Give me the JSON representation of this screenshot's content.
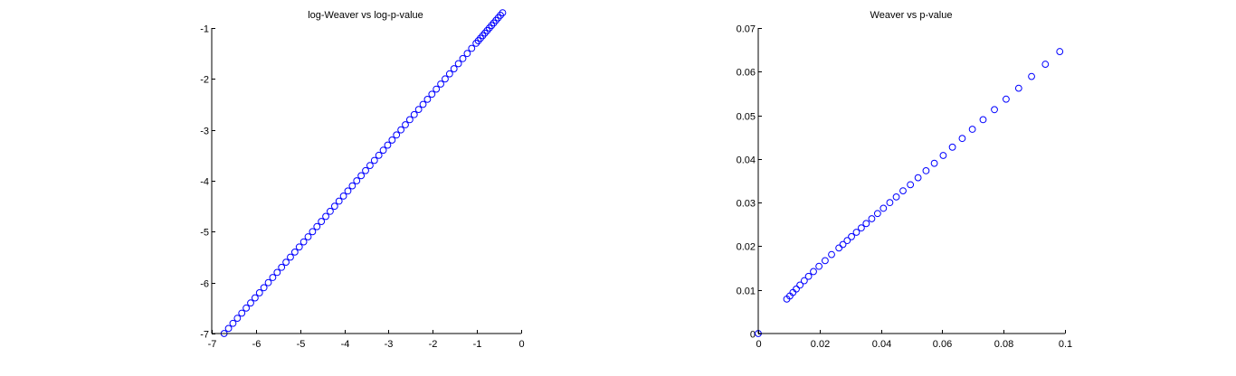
{
  "chart_data": [
    {
      "type": "scatter",
      "title": "log-Weaver vs log-p-value",
      "xlabel": "",
      "ylabel": "",
      "xlim": [
        -7,
        0
      ],
      "ylim": [
        -7,
        -1
      ],
      "xticks": [
        -7,
        -6,
        -5,
        -4,
        -3,
        -2,
        -1,
        0
      ],
      "yticks": [
        -7,
        -6,
        -5,
        -4,
        -3,
        -2,
        -1
      ],
      "xtick_labels": [
        "-7",
        "-6",
        "-5",
        "-4",
        "-3",
        "-2",
        "-1",
        "0"
      ],
      "ytick_labels": [
        "-7",
        "-6",
        "-5",
        "-4",
        "-3",
        "-2",
        "-1"
      ],
      "marker": "circle",
      "marker_color": "#0000ff",
      "grid": false,
      "x": [
        -6.72,
        -6.62,
        -6.52,
        -6.42,
        -6.32,
        -6.22,
        -6.12,
        -6.02,
        -5.92,
        -5.82,
        -5.72,
        -5.62,
        -5.52,
        -5.42,
        -5.32,
        -5.22,
        -5.12,
        -5.02,
        -4.92,
        -4.82,
        -4.72,
        -4.62,
        -4.52,
        -4.42,
        -4.32,
        -4.22,
        -4.12,
        -4.02,
        -3.92,
        -3.82,
        -3.72,
        -3.62,
        -3.52,
        -3.42,
        -3.32,
        -3.22,
        -3.12,
        -3.02,
        -2.92,
        -2.82,
        -2.72,
        -2.62,
        -2.52,
        -2.42,
        -2.32,
        -2.22,
        -2.12,
        -2.02,
        -1.92,
        -1.82,
        -1.72,
        -1.62,
        -1.52,
        -1.42,
        -1.32,
        -1.22,
        -1.12,
        -1.02,
        -0.97,
        -0.92,
        -0.87,
        -0.82,
        -0.77,
        -0.72,
        -0.67,
        -0.62,
        -0.57,
        -0.52,
        -0.47,
        -0.42
      ],
      "y": [
        -7.0,
        -6.9,
        -6.8,
        -6.7,
        -6.6,
        -6.5,
        -6.4,
        -6.3,
        -6.2,
        -6.1,
        -6.0,
        -5.9,
        -5.8,
        -5.7,
        -5.6,
        -5.5,
        -5.4,
        -5.3,
        -5.2,
        -5.1,
        -5.0,
        -4.9,
        -4.8,
        -4.7,
        -4.6,
        -4.5,
        -4.4,
        -4.3,
        -4.2,
        -4.1,
        -4.0,
        -3.9,
        -3.8,
        -3.7,
        -3.6,
        -3.5,
        -3.4,
        -3.3,
        -3.2,
        -3.1,
        -3.0,
        -2.9,
        -2.8,
        -2.7,
        -2.6,
        -2.5,
        -2.4,
        -2.3,
        -2.2,
        -2.1,
        -2.0,
        -1.9,
        -1.8,
        -1.7,
        -1.6,
        -1.5,
        -1.4,
        -1.3,
        -1.25,
        -1.2,
        -1.15,
        -1.1,
        -1.05,
        -1.0,
        -0.95,
        -0.9,
        -0.85,
        -0.8,
        -0.75,
        -0.7
      ]
    },
    {
      "type": "scatter",
      "title": "Weaver vs p-value",
      "xlabel": "",
      "ylabel": "",
      "xlim": [
        0,
        0.1
      ],
      "ylim": [
        0,
        0.07
      ],
      "xticks": [
        0,
        0.02,
        0.04,
        0.06,
        0.08,
        0.1
      ],
      "yticks": [
        0,
        0.01,
        0.02,
        0.03,
        0.04,
        0.05,
        0.06,
        0.07
      ],
      "xtick_labels": [
        "0",
        "0.02",
        "0.04",
        "0.06",
        "0.08",
        "0.1"
      ],
      "ytick_labels": [
        "0",
        "0.01",
        "0.02",
        "0.03",
        "0.04",
        "0.05",
        "0.06",
        "0.07"
      ],
      "marker": "circle",
      "marker_color": "#0000ff",
      "grid": false,
      "x": [
        0.0,
        0.0093,
        0.0103,
        0.0113,
        0.0124,
        0.0136,
        0.015,
        0.0164,
        0.018,
        0.0198,
        0.0218,
        0.0239,
        0.0263,
        0.0276,
        0.029,
        0.0304,
        0.032,
        0.0336,
        0.0352,
        0.037,
        0.0389,
        0.0408,
        0.0429,
        0.045,
        0.0472,
        0.0496,
        0.0521,
        0.0547,
        0.0574,
        0.0603,
        0.0633,
        0.0665,
        0.0698,
        0.0733,
        0.077,
        0.0808,
        0.0849,
        0.0891,
        0.0936,
        0.0983
      ],
      "y": [
        0.0,
        0.0079,
        0.0086,
        0.0094,
        0.0102,
        0.0111,
        0.0121,
        0.0131,
        0.0142,
        0.0154,
        0.0167,
        0.0181,
        0.0196,
        0.0204,
        0.0213,
        0.0222,
        0.0232,
        0.0242,
        0.0252,
        0.0263,
        0.0275,
        0.0287,
        0.03,
        0.0313,
        0.0327,
        0.0341,
        0.0357,
        0.0373,
        0.039,
        0.0408,
        0.0427,
        0.0447,
        0.0468,
        0.049,
        0.0513,
        0.0537,
        0.0562,
        0.0589,
        0.0617,
        0.0646
      ]
    }
  ]
}
